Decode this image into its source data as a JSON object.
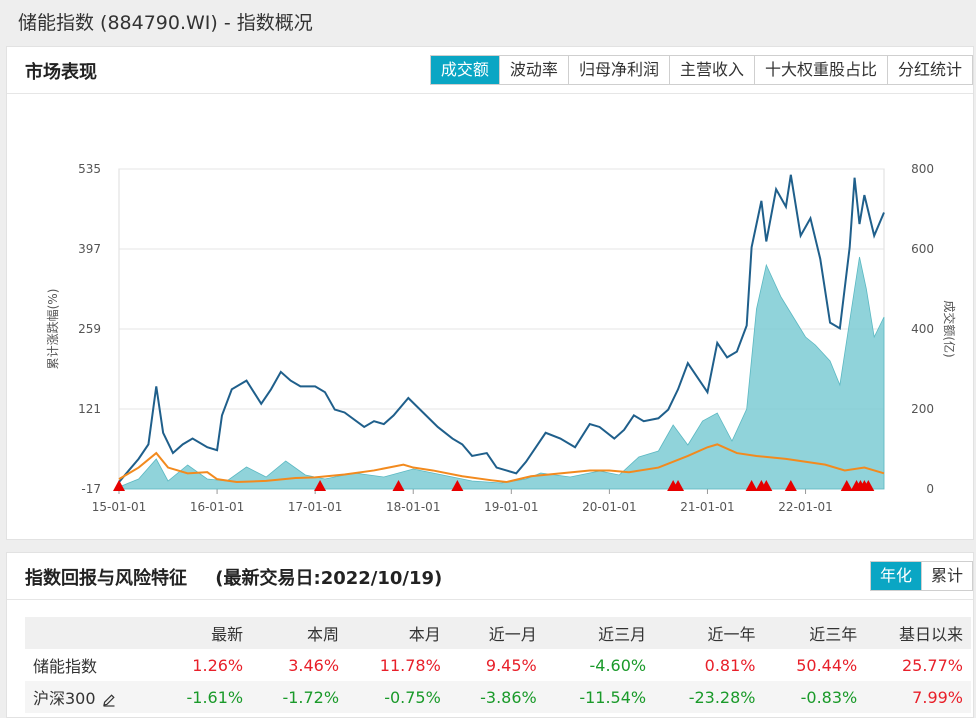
{
  "page_title": "储能指数 (884790.WI) - 指数概况",
  "market": {
    "title": "市场表现",
    "tabs": [
      "成交额",
      "波动率",
      "归母净利润",
      "主营收入",
      "十大权重股占比",
      "分红统计"
    ],
    "active_tab": 0
  },
  "chart_data": {
    "type": "line",
    "ylabel_left": "累计涨跌幅(%)",
    "ylabel_right": "成交额(亿)",
    "left_ticks": [
      "535",
      "397",
      "259",
      "121",
      "-17"
    ],
    "right_ticks": [
      "800",
      "600",
      "400",
      "200",
      "0"
    ],
    "ylim_left": [
      -17,
      535
    ],
    "ylim_right": [
      0,
      800
    ],
    "x_ticks": [
      "15-01-01",
      "16-01-01",
      "17-01-01",
      "18-01-01",
      "19-01-01",
      "20-01-01",
      "21-01-01",
      "22-01-01"
    ],
    "x_range": [
      2015.0,
      2022.8
    ],
    "legend": [
      "储能指数",
      "成交额(亿)",
      "调仓标志",
      "沪深300"
    ],
    "colors": {
      "index": "#1f5f8b",
      "volume": "#7ccbd3",
      "hs300": "#f28a1e",
      "marker": "#e60000"
    },
    "series": [
      {
        "name": "储能指数",
        "x": [
          2015.0,
          2015.1,
          2015.2,
          2015.3,
          2015.38,
          2015.45,
          2015.55,
          2015.65,
          2015.75,
          2015.9,
          2016.0,
          2016.05,
          2016.15,
          2016.3,
          2016.45,
          2016.55,
          2016.65,
          2016.75,
          2016.85,
          2017.0,
          2017.1,
          2017.2,
          2017.3,
          2017.5,
          2017.6,
          2017.7,
          2017.8,
          2017.95,
          2018.1,
          2018.25,
          2018.4,
          2018.5,
          2018.6,
          2018.75,
          2018.85,
          2018.95,
          2019.05,
          2019.15,
          2019.25,
          2019.35,
          2019.5,
          2019.65,
          2019.8,
          2019.9,
          2020.05,
          2020.15,
          2020.25,
          2020.35,
          2020.5,
          2020.6,
          2020.7,
          2020.8,
          2020.9,
          2021.0,
          2021.1,
          2021.2,
          2021.3,
          2021.4,
          2021.45,
          2021.55,
          2021.6,
          2021.7,
          2021.8,
          2021.85,
          2021.95,
          2022.05,
          2022.15,
          2022.25,
          2022.35,
          2022.45,
          2022.5,
          2022.55,
          2022.6,
          2022.7,
          2022.8
        ],
        "values": [
          -5,
          15,
          35,
          60,
          160,
          80,
          45,
          60,
          70,
          55,
          50,
          110,
          155,
          170,
          130,
          155,
          185,
          170,
          160,
          160,
          150,
          120,
          115,
          90,
          100,
          95,
          110,
          140,
          115,
          90,
          70,
          60,
          40,
          45,
          20,
          15,
          10,
          30,
          55,
          80,
          70,
          55,
          95,
          90,
          70,
          85,
          110,
          100,
          105,
          120,
          155,
          200,
          175,
          150,
          235,
          210,
          220,
          265,
          400,
          480,
          410,
          500,
          470,
          525,
          420,
          450,
          380,
          270,
          260,
          400,
          520,
          440,
          490,
          420,
          460
        ]
      },
      {
        "name": "成交额(亿)",
        "x": [
          2015.0,
          2015.2,
          2015.38,
          2015.5,
          2015.7,
          2015.9,
          2016.1,
          2016.3,
          2016.5,
          2016.7,
          2016.9,
          2017.1,
          2017.4,
          2017.7,
          2018.0,
          2018.3,
          2018.6,
          2018.9,
          2019.15,
          2019.3,
          2019.6,
          2019.9,
          2020.1,
          2020.3,
          2020.5,
          2020.65,
          2020.8,
          2020.95,
          2021.1,
          2021.25,
          2021.4,
          2021.5,
          2021.6,
          2021.75,
          2021.9,
          2022.0,
          2022.1,
          2022.25,
          2022.35,
          2022.45,
          2022.55,
          2022.62,
          2022.7,
          2022.8
        ],
        "values": [
          5,
          25,
          75,
          20,
          60,
          25,
          20,
          55,
          30,
          70,
          35,
          25,
          40,
          30,
          50,
          35,
          20,
          15,
          25,
          40,
          30,
          45,
          35,
          80,
          95,
          160,
          110,
          170,
          190,
          120,
          200,
          450,
          560,
          480,
          420,
          380,
          360,
          320,
          260,
          420,
          580,
          500,
          380,
          430
        ]
      },
      {
        "name": "沪深300",
        "x": [
          2015.0,
          2015.2,
          2015.38,
          2015.5,
          2015.7,
          2015.9,
          2016.0,
          2016.2,
          2016.5,
          2016.8,
          2017.0,
          2017.3,
          2017.6,
          2017.9,
          2018.0,
          2018.2,
          2018.5,
          2018.8,
          2018.95,
          2019.2,
          2019.5,
          2019.8,
          2020.0,
          2020.2,
          2020.5,
          2020.8,
          2021.0,
          2021.1,
          2021.3,
          2021.5,
          2021.8,
          2022.0,
          2022.2,
          2022.4,
          2022.6,
          2022.8
        ],
        "values": [
          0,
          20,
          45,
          20,
          10,
          12,
          0,
          -5,
          -3,
          2,
          3,
          8,
          15,
          25,
          20,
          15,
          5,
          -2,
          -5,
          5,
          10,
          15,
          15,
          12,
          20,
          40,
          55,
          60,
          45,
          40,
          35,
          30,
          25,
          15,
          20,
          10
        ]
      }
    ],
    "rebalance_x": [
      2015.0,
      2017.05,
      2017.85,
      2018.45,
      2020.65,
      2020.7,
      2021.45,
      2021.55,
      2021.6,
      2021.85,
      2022.42,
      2022.52,
      2022.56,
      2022.6,
      2022.64
    ]
  },
  "returns": {
    "title": "指数回报与风险特征",
    "subtitle": "(最新交易日:2022/10/19)",
    "tabs": [
      "年化",
      "累计"
    ],
    "active_tab": 0,
    "headers": [
      "",
      "最新",
      "本周",
      "本月",
      "近一月",
      "近三月",
      "近一年",
      "近三年",
      "基日以来"
    ],
    "rows": [
      {
        "name": "储能指数",
        "values": [
          "1.26%",
          "3.46%",
          "11.78%",
          "9.45%",
          "-4.60%",
          "0.81%",
          "50.44%",
          "25.77%"
        ]
      },
      {
        "name": "沪深300",
        "values": [
          "-1.61%",
          "-1.72%",
          "-0.75%",
          "-3.86%",
          "-11.54%",
          "-23.28%",
          "-0.83%",
          "7.99%"
        ]
      }
    ]
  }
}
